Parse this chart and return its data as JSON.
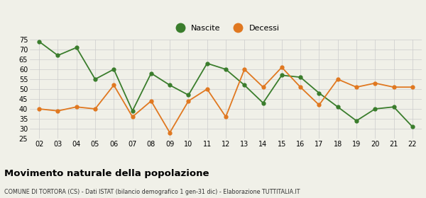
{
  "years": [
    "02",
    "03",
    "04",
    "05",
    "06",
    "07",
    "08",
    "09",
    "10",
    "11",
    "12",
    "13",
    "14",
    "15",
    "16",
    "17",
    "18",
    "19",
    "20",
    "21",
    "22"
  ],
  "nascite": [
    74,
    67,
    71,
    55,
    60,
    39,
    58,
    52,
    47,
    63,
    60,
    52,
    43,
    57,
    56,
    48,
    41,
    34,
    40,
    41,
    31
  ],
  "decessi": [
    40,
    39,
    41,
    40,
    52,
    36,
    44,
    28,
    44,
    50,
    36,
    60,
    51,
    61,
    51,
    42,
    55,
    51,
    53,
    51,
    51
  ],
  "nascite_color": "#3a7d2c",
  "decessi_color": "#e07820",
  "title": "Movimento naturale della popolazione",
  "subtitle": "COMUNE DI TORTORA (CS) - Dati ISTAT (bilancio demografico 1 gen-31 dic) - Elaborazione TUTTITALIA.IT",
  "ylim": [
    25,
    75
  ],
  "yticks": [
    25,
    30,
    35,
    40,
    45,
    50,
    55,
    60,
    65,
    70,
    75
  ],
  "legend_nascite": "Nascite",
  "legend_decessi": "Decessi",
  "bg_color": "#f0f0e8",
  "grid_color": "#cccccc"
}
